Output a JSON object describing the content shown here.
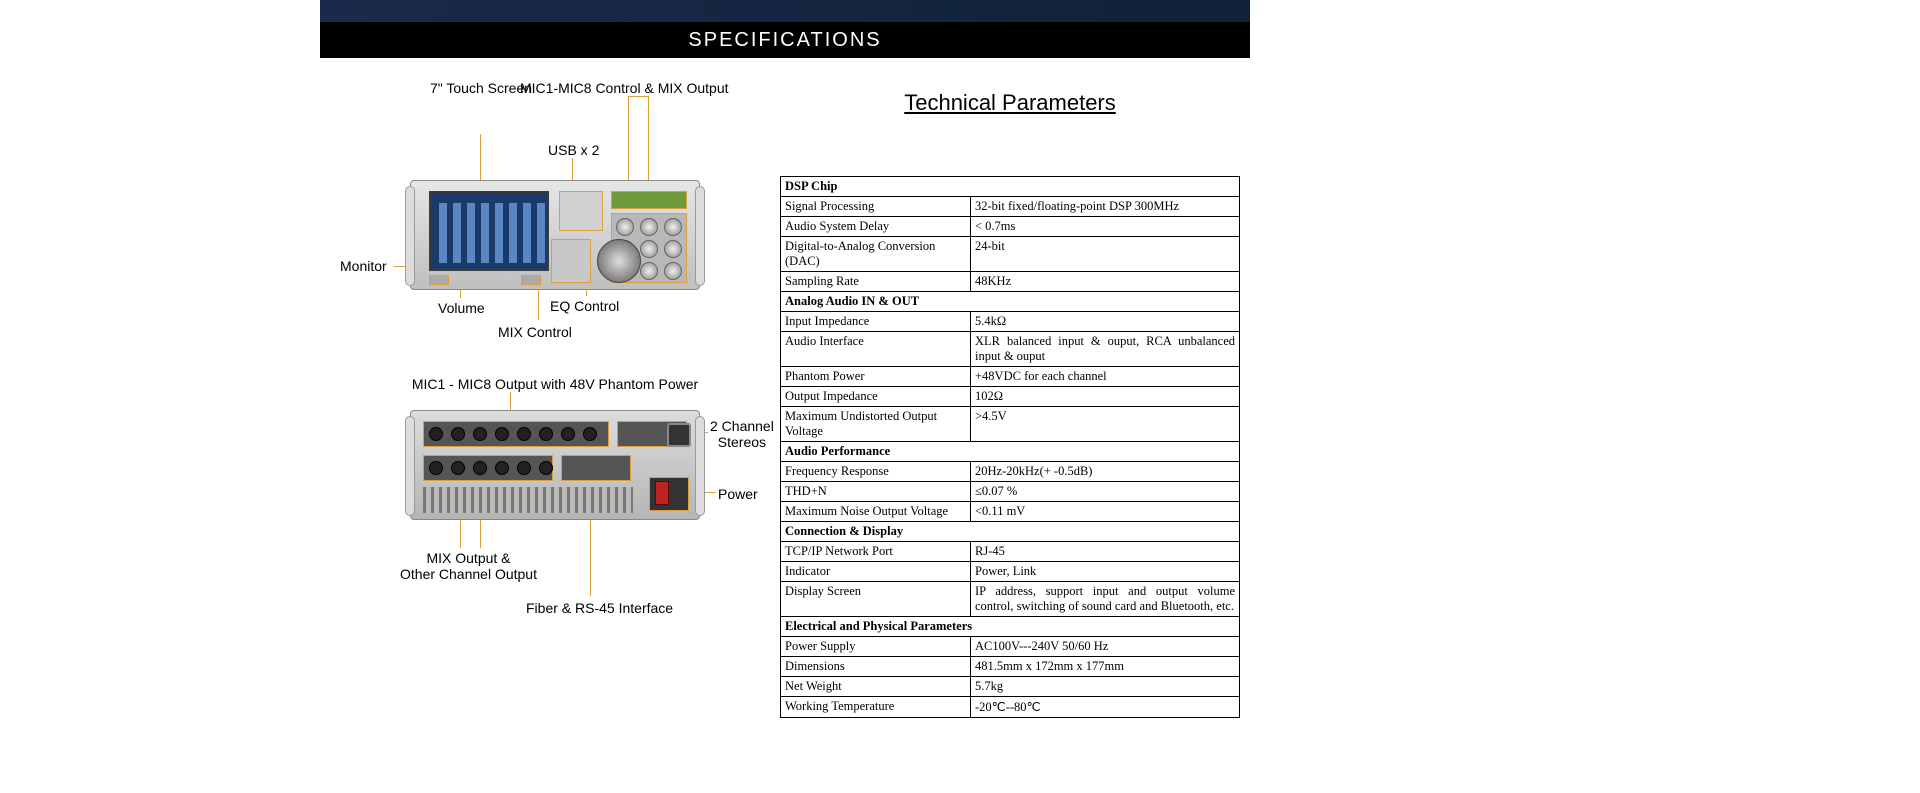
{
  "header": {
    "title": "SPECIFICATIONS"
  },
  "params_title": "Technical Parameters",
  "callouts": {
    "mic_control": "MIC1-MIC8 Control & MIX Output",
    "touch": "7\" Touch Screen",
    "usb": "USB x 2",
    "monitor": "Monitor",
    "volume": "Volume",
    "eq": "EQ Control",
    "mix": "MIX Control",
    "mic_out_48v": "MIC1 - MIC8 Output with 48V Phantom Power",
    "stereo": "2 Channel\nStereos",
    "power": "Power",
    "mix_out": "MIX Output &\nOther Channel Output",
    "fiber": "Fiber & RS-45 Interface"
  },
  "colors": {
    "callout_line": "#d9a03c",
    "bar_bg": "#000000",
    "bar_fg": "#ffffff",
    "table_border": "#000000"
  },
  "sections": [
    {
      "title": "DSP Chip",
      "rows": [
        {
          "label": "Signal Processing",
          "value": "32-bit fixed/floating-point DSP 300MHz"
        },
        {
          "label": "Audio System Delay",
          "value": "< 0.7ms"
        },
        {
          "label": "Digital-to-Analog Conversion (DAC)",
          "value": "24-bit"
        },
        {
          "label": "Sampling Rate",
          "value": "48KHz"
        }
      ]
    },
    {
      "title": "Analog Audio IN & OUT",
      "rows": [
        {
          "label": "Input Impedance",
          "value": "5.4kΩ"
        },
        {
          "label": "Audio Interface",
          "value": "XLR balanced input & ouput, RCA unbalanced input & ouput",
          "justify": true
        },
        {
          "label": "Phantom Power",
          "value": "+48VDC for each channel"
        },
        {
          "label": "Output Impedance",
          "value": "102Ω"
        },
        {
          "label": "Maximum Undistorted Output Voltage",
          "value": ">4.5V"
        }
      ]
    },
    {
      "title": "Audio Performance",
      "rows": [
        {
          "label": "Frequency Response",
          "value": "20Hz-20kHz(+ -0.5dB)"
        },
        {
          "label": "THD+N",
          "value": "≤0.07 %"
        },
        {
          "label": "Maximum Noise Output Voltage",
          "value": "<0.11 mV"
        }
      ]
    },
    {
      "title": "Connection & Display",
      "rows": [
        {
          "label": "TCP/IP Network Port",
          "value": "RJ-45"
        },
        {
          "label": "Indicator",
          "value": "Power, Link"
        },
        {
          "label": "Display Screen",
          "value": "IP address, support input and output volume control, switching of sound card and Bluetooth, etc.",
          "justify": true
        }
      ]
    },
    {
      "title": "Electrical and Physical Parameters",
      "rows": [
        {
          "label": "Power Supply",
          "value": "AC100V---240V    50/60 Hz"
        },
        {
          "label": "Dimensions",
          "value": "481.5mm x 172mm x 177mm"
        },
        {
          "label": "Net Weight",
          "value": "5.7kg"
        },
        {
          "label": "Working Temperature",
          "value": "-20℃--80℃"
        }
      ]
    }
  ]
}
